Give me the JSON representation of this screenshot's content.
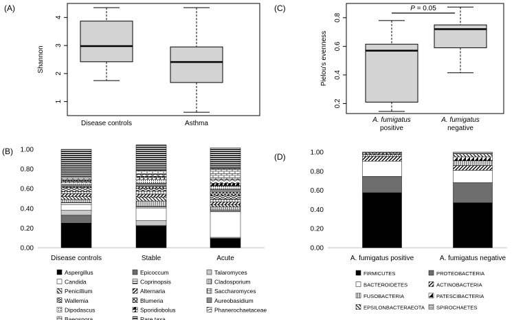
{
  "panels": {
    "a": "(A)",
    "b": "(B)",
    "c": "(C)",
    "d": "(D)"
  },
  "colors": {
    "box_fill": "#d3d3d3",
    "axis": "#000000"
  },
  "chart_data": [
    {
      "id": "A",
      "type": "box",
      "ylabel": "Shannon",
      "ylim": [
        0.5,
        4.5
      ],
      "yticks": [
        1,
        2,
        3,
        4
      ],
      "categories": [
        "Disease controls",
        "Asthma"
      ],
      "boxes": [
        {
          "min": 1.75,
          "q1": 2.42,
          "median": 2.98,
          "q3": 3.87,
          "max": 4.35
        },
        {
          "min": 0.62,
          "q1": 1.68,
          "median": 2.41,
          "q3": 2.95,
          "max": 4.35
        }
      ]
    },
    {
      "id": "C",
      "type": "box",
      "ylabel": "Pielou's evenness",
      "ylim": [
        0.13,
        0.9
      ],
      "yticks": [
        0.2,
        0.4,
        0.6,
        0.8
      ],
      "categories": [
        {
          "italic": "A. fumigatus",
          "line2": "positive"
        },
        {
          "italic": "A. fumigatus",
          "line2": "negative"
        }
      ],
      "boxes": [
        {
          "min": 0.145,
          "q1": 0.21,
          "median": 0.57,
          "q3": 0.615,
          "max": 0.78
        },
        {
          "min": 0.415,
          "q1": 0.59,
          "median": 0.72,
          "q3": 0.75,
          "max": 0.875
        }
      ],
      "annotation": {
        "p_label": "P",
        "p_value": " = 0.05"
      }
    },
    {
      "id": "B",
      "type": "stacked_bar",
      "ylim": [
        0,
        1
      ],
      "yticks": [
        "0.00",
        "0.20",
        "0.40",
        "0.60",
        "0.80",
        "1.00"
      ],
      "categories": [
        "Disease controls",
        "Stable",
        "Acute"
      ],
      "series": [
        {
          "name": "Aspergillus",
          "pattern": "solid-black",
          "values": [
            0.25,
            0.22,
            0.09
          ]
        },
        {
          "name": "Epicoccum",
          "pattern": "dark-gray",
          "values": [
            0.08,
            0.005,
            0.005
          ]
        },
        {
          "name": "Talaromyces",
          "pattern": "light-gray",
          "values": [
            0.05,
            0.05,
            0.01
          ]
        },
        {
          "name": "Candida",
          "pattern": "white",
          "values": [
            0.06,
            0.13,
            0.26
          ]
        },
        {
          "name": "Coprinopsis",
          "pattern": "hlines",
          "values": [
            0.02,
            0.02,
            0.02
          ]
        },
        {
          "name": "Cladosporium",
          "pattern": "vlines",
          "values": [
            0.03,
            0.05,
            0.03
          ]
        },
        {
          "name": "Penicillium",
          "pattern": "diag-left",
          "values": [
            0.03,
            0.04,
            0.02
          ]
        },
        {
          "name": "Alternaria",
          "pattern": "diag-right",
          "values": [
            0.03,
            0.03,
            0.03
          ]
        },
        {
          "name": "Saccharomyces",
          "pattern": "crosshatch",
          "values": [
            0.02,
            0.03,
            0.03
          ]
        },
        {
          "name": "Wallemia",
          "pattern": "chevron",
          "values": [
            0.04,
            0.03,
            0.04
          ]
        },
        {
          "name": "Blumeria",
          "pattern": "xcross",
          "values": [
            0.01,
            0.02,
            0.03
          ]
        },
        {
          "name": "Aureobasidium",
          "pattern": "mid-gray",
          "values": [
            0.02,
            0.03,
            0.03
          ]
        },
        {
          "name": "Dipodascus",
          "pattern": "dots",
          "values": [
            0.02,
            0.04,
            0.03
          ]
        },
        {
          "name": "Sporidiobolus",
          "pattern": "tri",
          "values": [
            0.02,
            0.03,
            0.03
          ]
        },
        {
          "name": "Phanerochaetaceae",
          "pattern": "waves",
          "values": [
            0.01,
            0.02,
            0.04
          ]
        },
        {
          "name": "Baeospora",
          "pattern": "brick",
          "values": [
            0.02,
            0.04,
            0.11
          ]
        },
        {
          "name": "Rare taxa",
          "pattern": "thick-hlines",
          "values": [
            0.29,
            0.26,
            0.21
          ]
        }
      ]
    },
    {
      "id": "D",
      "type": "stacked_bar",
      "ylim": [
        0,
        1
      ],
      "yticks": [
        "0.00",
        "0.20",
        "0.40",
        "0.60",
        "0.80",
        "1.00"
      ],
      "categories": [
        "A. fumigatus positive",
        "A. fumigatus negative"
      ],
      "series": [
        {
          "name": "FIRMICUTES",
          "pattern": "solid-black",
          "values": [
            0.575,
            0.47
          ]
        },
        {
          "name": "PROTEOBACTERIA",
          "pattern": "dark-gray",
          "values": [
            0.17,
            0.21
          ]
        },
        {
          "name": "BACTEROIDETES",
          "pattern": "white",
          "values": [
            0.16,
            0.13
          ]
        },
        {
          "name": "ACTINOBACTERIA",
          "pattern": "diag-right",
          "values": [
            0.05,
            0.05
          ]
        },
        {
          "name": "FUSOBACTERIA",
          "pattern": "vlines",
          "values": [
            0.02,
            0.05
          ]
        },
        {
          "name": "PATESCIBACTERIA",
          "pattern": "tri",
          "values": [
            0.01,
            0.04
          ]
        },
        {
          "name": "EPSILONBACTERAEOTA",
          "pattern": "diag-left",
          "values": [
            0.01,
            0.03
          ]
        },
        {
          "name": "SPIROCHAETES",
          "pattern": "hlines",
          "values": [
            0.005,
            0.02
          ]
        }
      ]
    }
  ]
}
